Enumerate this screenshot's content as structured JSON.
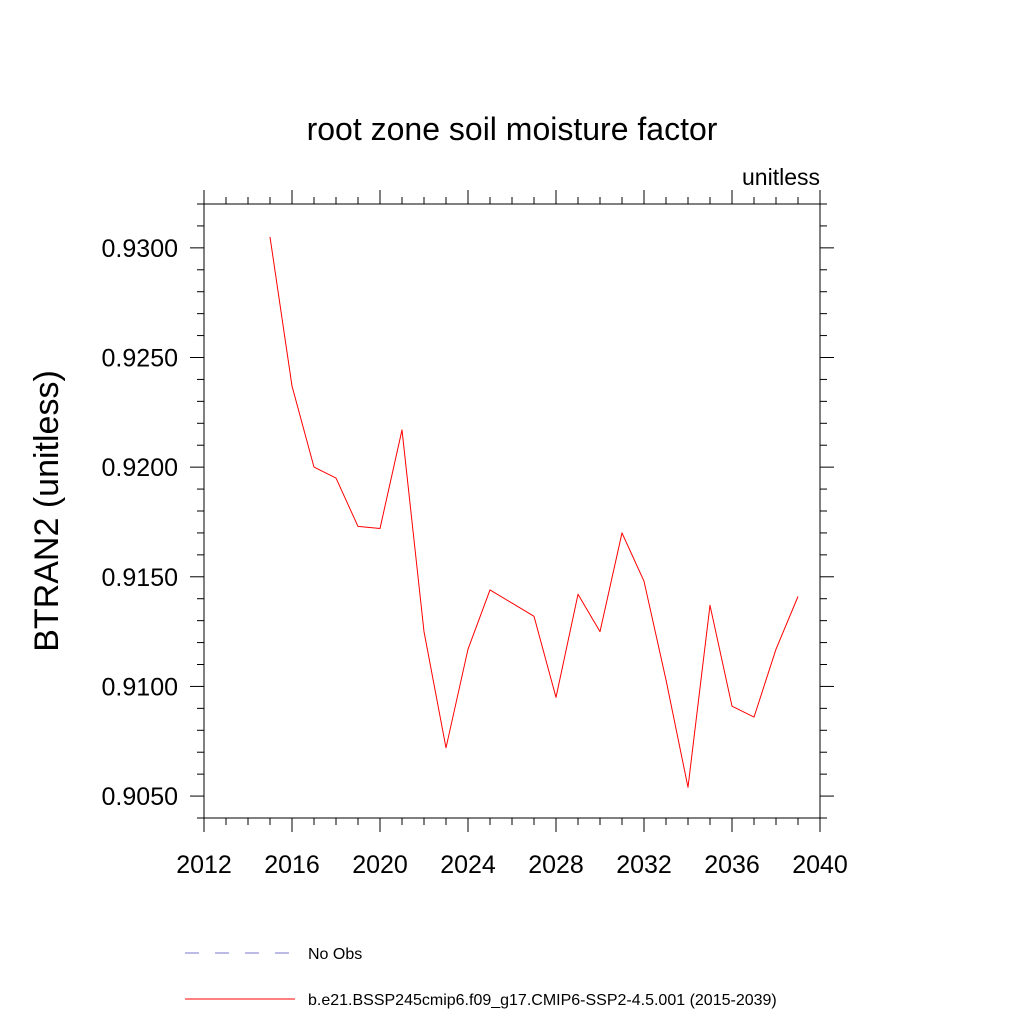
{
  "chart_data": {
    "type": "line",
    "title": "root zone soil moisture factor",
    "units_label": "unitless",
    "ylabel": "BTRAN2  (unitless)",
    "xlabel": "",
    "xlim": [
      2012,
      2040
    ],
    "ylim": [
      0.904,
      0.932
    ],
    "x_ticks": [
      2012,
      2016,
      2020,
      2024,
      2028,
      2032,
      2036,
      2040
    ],
    "x_tick_labels": [
      "2012",
      "2016",
      "2020",
      "2024",
      "2028",
      "2032",
      "2036",
      "2040"
    ],
    "y_ticks": [
      0.905,
      0.91,
      0.915,
      0.92,
      0.925,
      0.93
    ],
    "y_tick_labels": [
      "0.9050",
      "0.9100",
      "0.9150",
      "0.9200",
      "0.9250",
      "0.9300"
    ],
    "grid": false,
    "legend_position": "bottom",
    "series": [
      {
        "name": "b.e21.BSSP245cmip6.f09_g17.CMIP6-SSP2-4.5.001 (2015-2039)",
        "color": "#ff0000",
        "style": "solid",
        "x": [
          2015,
          2016,
          2017,
          2018,
          2019,
          2020,
          2021,
          2022,
          2023,
          2024,
          2025,
          2026,
          2027,
          2028,
          2029,
          2030,
          2031,
          2032,
          2033,
          2034,
          2035,
          2036,
          2037,
          2038,
          2039
        ],
        "y": [
          0.9305,
          0.9237,
          0.92,
          0.9195,
          0.9173,
          0.9172,
          0.9217,
          0.9125,
          0.9072,
          0.9117,
          0.9144,
          0.9138,
          0.9132,
          0.9095,
          0.9142,
          0.9125,
          0.917,
          0.9148,
          0.9103,
          0.9054,
          0.9137,
          0.9091,
          0.9086,
          0.9117,
          0.9141
        ]
      }
    ],
    "legend": [
      {
        "label": "No Obs",
        "color": "#7777cc",
        "style": "dashed"
      },
      {
        "label": "b.e21.BSSP245cmip6.f09_g17.CMIP6-SSP2-4.5.001 (2015-2039)",
        "color": "#ff0000",
        "style": "solid"
      }
    ]
  }
}
